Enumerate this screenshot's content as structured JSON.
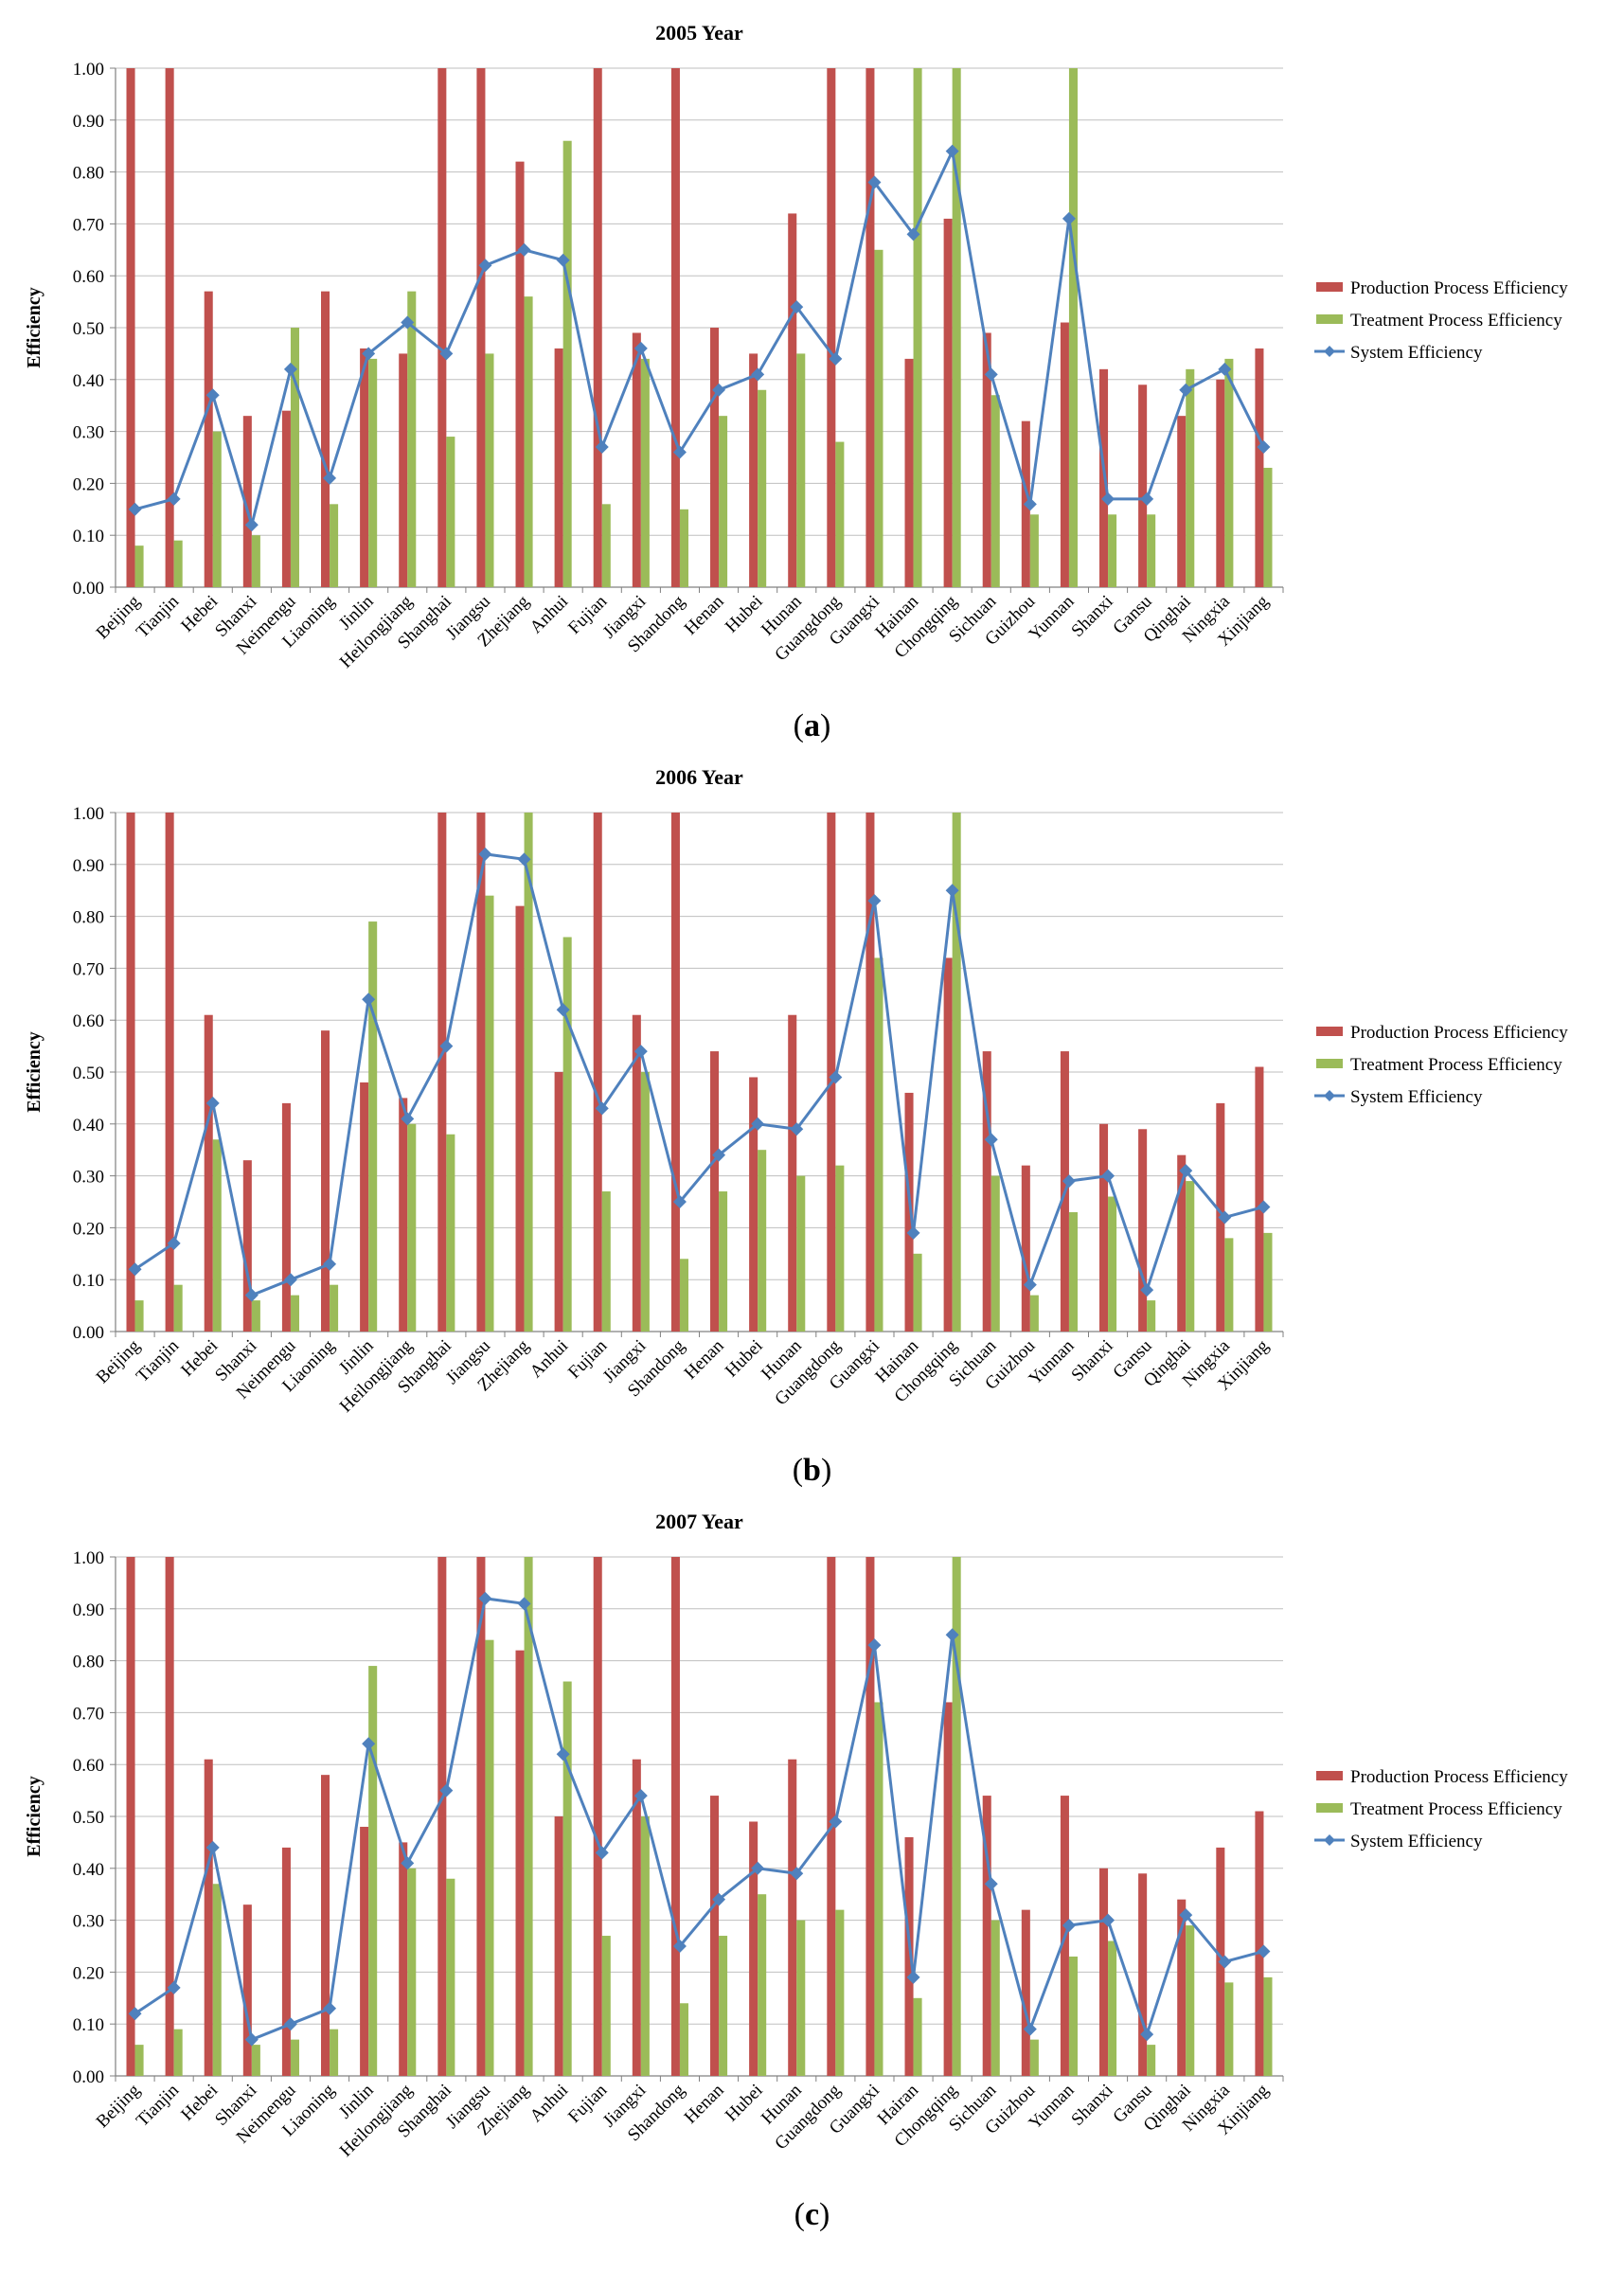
{
  "chart_data": [
    {
      "type": "bar",
      "title": "2005 Year",
      "caption_letter": "a",
      "ylabel": "Efficiency",
      "xlabel": "",
      "ylim": [
        0,
        1
      ],
      "yticks": [
        "0.00",
        "0.10",
        "0.20",
        "0.30",
        "0.40",
        "0.50",
        "0.60",
        "0.70",
        "0.80",
        "0.90",
        "1.00"
      ],
      "grid": "horizontal",
      "legend_position": "right",
      "categories": [
        "Beijing",
        "Tianjin",
        "Hebei",
        "Shanxi",
        "Neimengu",
        "Liaoning",
        "Jinlin",
        "Heilongjiang",
        "Shanghai",
        "Jiangsu",
        "Zhejiang",
        "Anhui",
        "Fujian",
        "Jiangxi",
        "Shandong",
        "Henan",
        "Hubei",
        "Hunan",
        "Guangdong",
        "Guangxi",
        "Hainan",
        "Chongqing",
        "Sichuan",
        "Guizhou",
        "Yunnan",
        "Shanxi",
        "Gansu",
        "Qinghai",
        "Ningxia",
        "Xinjiang"
      ],
      "series": [
        {
          "name": "Production Process Efficiency",
          "kind": "bar",
          "color": "#C0504D",
          "values": [
            1.0,
            1.0,
            0.57,
            0.33,
            0.34,
            0.57,
            0.46,
            0.45,
            1.0,
            1.0,
            0.82,
            0.46,
            1.0,
            0.49,
            1.0,
            0.5,
            0.45,
            0.72,
            1.0,
            1.0,
            0.44,
            0.71,
            0.49,
            0.32,
            0.51,
            0.42,
            0.39,
            0.33,
            0.4,
            0.46
          ]
        },
        {
          "name": "Treatment Process Efficiency",
          "kind": "bar",
          "color": "#9BBB59",
          "values": [
            0.08,
            0.09,
            0.3,
            0.1,
            0.5,
            0.16,
            0.44,
            0.57,
            0.29,
            0.45,
            0.56,
            0.86,
            0.16,
            0.44,
            0.15,
            0.33,
            0.38,
            0.45,
            0.28,
            0.65,
            1.0,
            1.0,
            0.37,
            0.14,
            1.0,
            0.14,
            0.14,
            0.42,
            0.44,
            0.23
          ]
        },
        {
          "name": "System Efficiency",
          "kind": "line",
          "color": "#4F81BD",
          "values": [
            0.15,
            0.17,
            0.37,
            0.12,
            0.42,
            0.21,
            0.45,
            0.51,
            0.45,
            0.62,
            0.65,
            0.63,
            0.27,
            0.46,
            0.26,
            0.38,
            0.41,
            0.54,
            0.44,
            0.78,
            0.68,
            0.84,
            0.41,
            0.16,
            0.71,
            0.17,
            0.17,
            0.38,
            0.42,
            0.27
          ]
        }
      ]
    },
    {
      "type": "bar",
      "title": "2006 Year",
      "caption_letter": "b",
      "ylabel": "Efficiency",
      "xlabel": "",
      "ylim": [
        0,
        1
      ],
      "yticks": [
        "0.00",
        "0.10",
        "0.20",
        "0.30",
        "0.40",
        "0.50",
        "0.60",
        "0.70",
        "0.80",
        "0.90",
        "1.00"
      ],
      "grid": "horizontal",
      "legend_position": "right",
      "categories": [
        "Beijing",
        "Tianjin",
        "Hebei",
        "Shanxi",
        "Neimengu",
        "Liaoning",
        "Jinlin",
        "Heilongjiang",
        "Shanghai",
        "Jiangsu",
        "Zhejiang",
        "Anhui",
        "Fujian",
        "Jiangxi",
        "Shandong",
        "Henan",
        "Hubei",
        "Hunan",
        "Guangdong",
        "Guangxi",
        "Hainan",
        "Chongqing",
        "Sichuan",
        "Guizhou",
        "Yunnan",
        "Shanxi",
        "Gansu",
        "Qinghai",
        "Ningxia",
        "Xinjiang"
      ],
      "series": [
        {
          "name": "Production Process Efficiency",
          "kind": "bar",
          "color": "#C0504D",
          "values": [
            1.0,
            1.0,
            0.61,
            0.33,
            0.44,
            0.58,
            0.48,
            0.45,
            1.0,
            1.0,
            0.82,
            0.5,
            1.0,
            0.61,
            1.0,
            0.54,
            0.49,
            0.61,
            1.0,
            1.0,
            0.46,
            0.72,
            0.54,
            0.32,
            0.54,
            0.4,
            0.39,
            0.34,
            0.44,
            0.51
          ]
        },
        {
          "name": "Treatment Process Efficiency",
          "kind": "bar",
          "color": "#9BBB59",
          "values": [
            0.06,
            0.09,
            0.37,
            0.06,
            0.07,
            0.09,
            0.79,
            0.4,
            0.38,
            0.84,
            1.0,
            0.76,
            0.27,
            0.5,
            0.14,
            0.27,
            0.35,
            0.3,
            0.32,
            0.72,
            0.15,
            1.0,
            0.3,
            0.07,
            0.23,
            0.26,
            0.06,
            0.29,
            0.18,
            0.19
          ]
        },
        {
          "name": "System Efficiency",
          "kind": "line",
          "color": "#4F81BD",
          "values": [
            0.12,
            0.17,
            0.44,
            0.07,
            0.1,
            0.13,
            0.64,
            0.41,
            0.55,
            0.92,
            0.91,
            0.62,
            0.43,
            0.54,
            0.25,
            0.34,
            0.4,
            0.39,
            0.49,
            0.83,
            0.19,
            0.85,
            0.37,
            0.09,
            0.29,
            0.3,
            0.08,
            0.31,
            0.22,
            0.24
          ]
        }
      ]
    },
    {
      "type": "bar",
      "title": "2007 Year",
      "caption_letter": "c",
      "ylabel": "Efficiency",
      "xlabel": "",
      "ylim": [
        0,
        1
      ],
      "yticks": [
        "0.00",
        "0.10",
        "0.20",
        "0.30",
        "0.40",
        "0.50",
        "0.60",
        "0.70",
        "0.80",
        "0.90",
        "1.00"
      ],
      "grid": "horizontal",
      "legend_position": "right",
      "categories": [
        "Beijing",
        "Tianjin",
        "Hebei",
        "Shanxi",
        "Neimengu",
        "Liaoning",
        "Jinlin",
        "Heilongjiang",
        "Shanghai",
        "Jiangsu",
        "Zhejiang",
        "Anhui",
        "Fujian",
        "Jiangxi",
        "Shandong",
        "Henan",
        "Hubei",
        "Hunan",
        "Guangdong",
        "Guangxi",
        "Hairan",
        "Chongqing",
        "Sichuan",
        "Guizhou",
        "Yunnan",
        "Shanxi",
        "Gansu",
        "Qinghai",
        "Ningxia",
        "Xinjiang"
      ],
      "series": [
        {
          "name": "Production Process Efficiency",
          "kind": "bar",
          "color": "#C0504D",
          "values": [
            1.0,
            1.0,
            0.61,
            0.33,
            0.44,
            0.58,
            0.48,
            0.45,
            1.0,
            1.0,
            0.82,
            0.5,
            1.0,
            0.61,
            1.0,
            0.54,
            0.49,
            0.61,
            1.0,
            1.0,
            0.46,
            0.72,
            0.54,
            0.32,
            0.54,
            0.4,
            0.39,
            0.34,
            0.44,
            0.51
          ]
        },
        {
          "name": "Treatment Process Efficiency",
          "kind": "bar",
          "color": "#9BBB59",
          "values": [
            0.06,
            0.09,
            0.37,
            0.06,
            0.07,
            0.09,
            0.79,
            0.4,
            0.38,
            0.84,
            1.0,
            0.76,
            0.27,
            0.5,
            0.14,
            0.27,
            0.35,
            0.3,
            0.32,
            0.72,
            0.15,
            1.0,
            0.3,
            0.07,
            0.23,
            0.26,
            0.06,
            0.29,
            0.18,
            0.19
          ]
        },
        {
          "name": "System Efficiency",
          "kind": "line",
          "color": "#4F81BD",
          "values": [
            0.12,
            0.17,
            0.44,
            0.07,
            0.1,
            0.13,
            0.64,
            0.41,
            0.55,
            0.92,
            0.91,
            0.62,
            0.43,
            0.54,
            0.25,
            0.34,
            0.4,
            0.39,
            0.49,
            0.83,
            0.19,
            0.85,
            0.37,
            0.09,
            0.29,
            0.3,
            0.08,
            0.31,
            0.22,
            0.24
          ]
        }
      ]
    }
  ]
}
